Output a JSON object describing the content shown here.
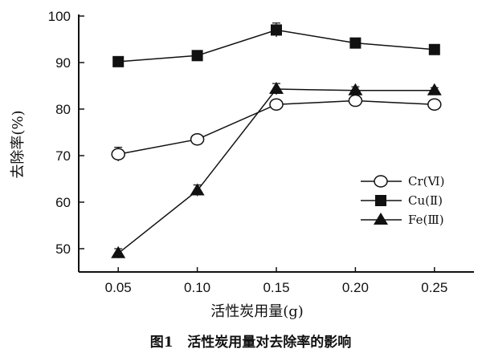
{
  "chart_data": {
    "type": "line",
    "title": "",
    "caption": "图1   活性炭用量对去除率的影响",
    "xlabel": "活性炭用量(g)",
    "ylabel": "去除率(%)",
    "x": [
      0.05,
      0.1,
      0.15,
      0.2,
      0.25
    ],
    "x_tick_labels": [
      "0.05",
      "0.10",
      "0.15",
      "0.20",
      "0.25"
    ],
    "y_ticks": [
      50,
      60,
      70,
      80,
      90,
      100
    ],
    "y_tick_labels": [
      "50",
      "60",
      "70",
      "80",
      "90",
      "100"
    ],
    "xlim": [
      0.025,
      0.275
    ],
    "ylim": [
      45,
      100
    ],
    "grid": false,
    "legend_position": "right",
    "series": [
      {
        "name": "Cr(Ⅵ)",
        "marker": "open-circle",
        "values": [
          70.3,
          73.5,
          81.0,
          81.8,
          81.0
        ],
        "error": [
          1.5,
          0.8,
          1.0,
          0.8,
          0.8
        ]
      },
      {
        "name": "Cu(Ⅱ)",
        "marker": "filled-square",
        "values": [
          90.2,
          91.5,
          97.0,
          94.2,
          92.8
        ],
        "error": [
          0.8,
          0.8,
          1.5,
          0.6,
          0.6
        ]
      },
      {
        "name": "Fe(Ⅲ)",
        "marker": "filled-triangle",
        "values": [
          49.0,
          62.5,
          84.3,
          84.0,
          84.0
        ],
        "error": [
          1.0,
          1.2,
          1.2,
          0.8,
          0.6
        ]
      }
    ]
  }
}
